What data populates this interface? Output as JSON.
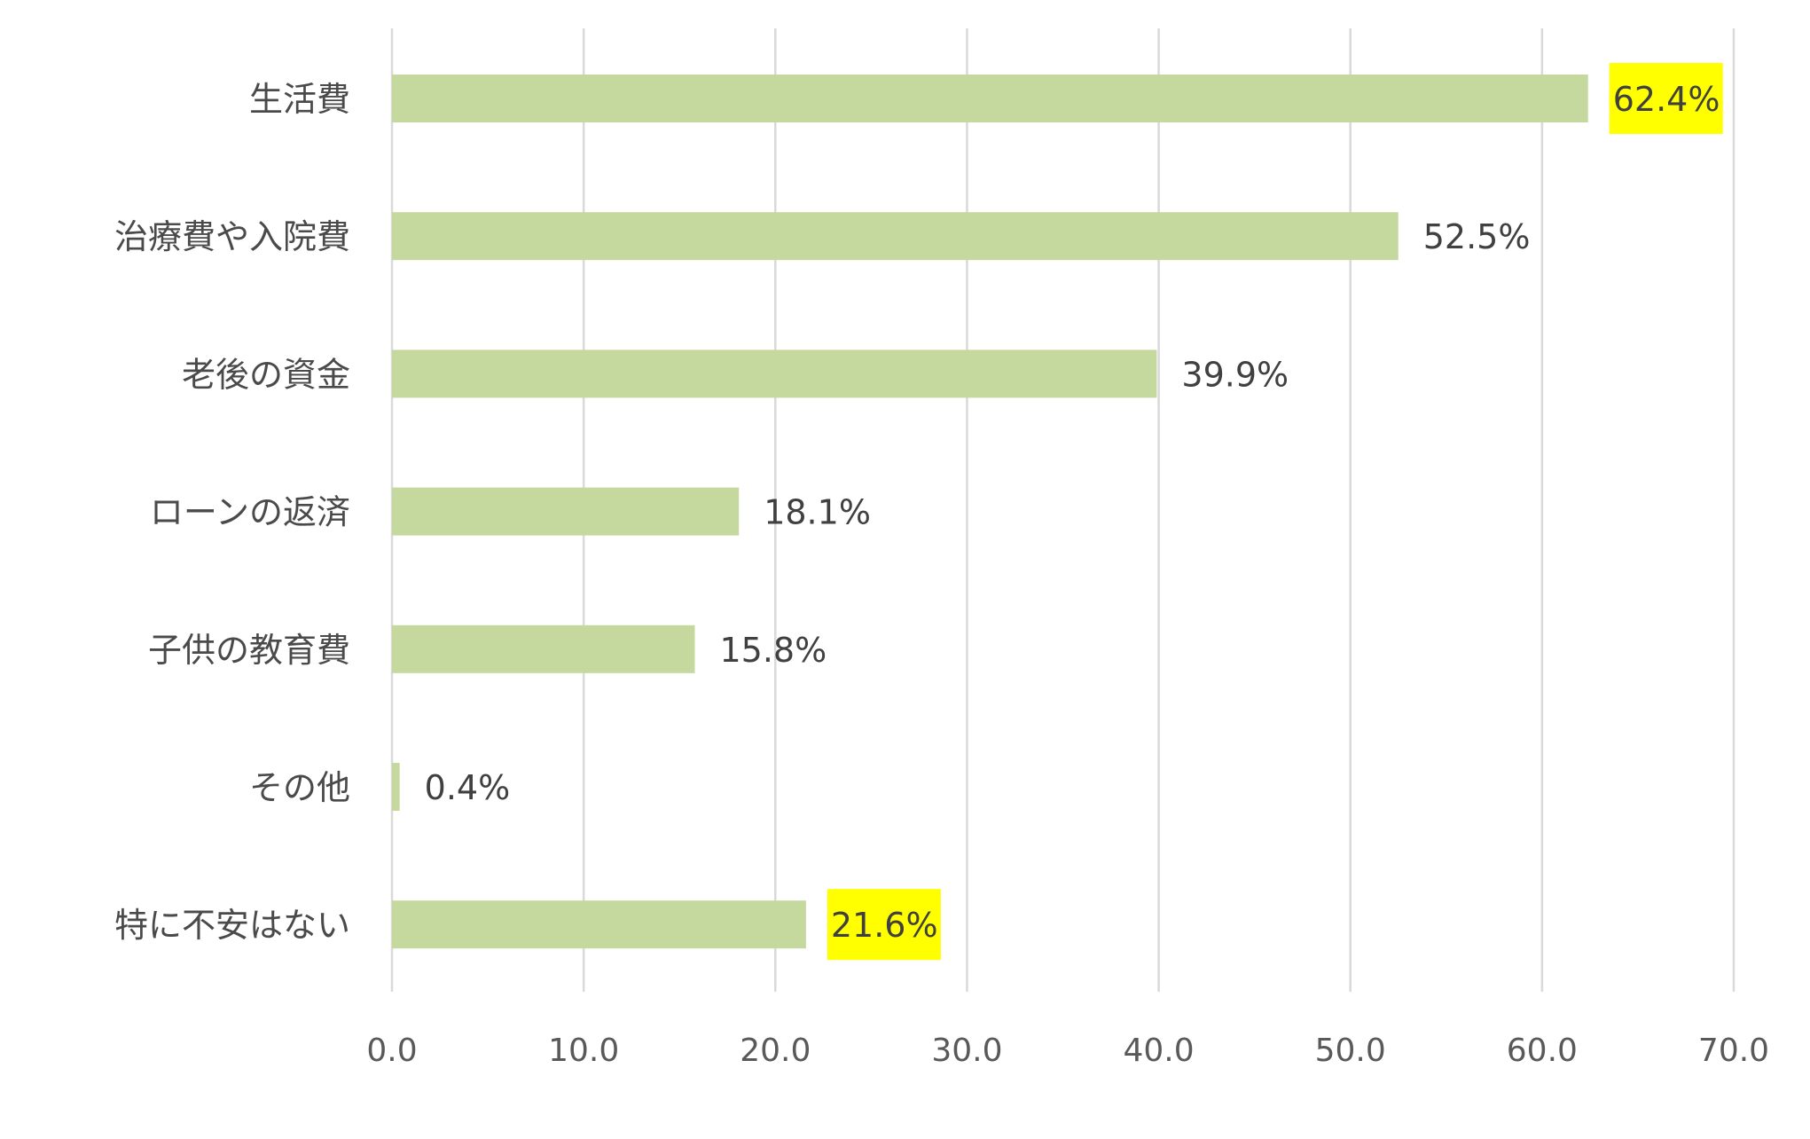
{
  "chart_data": {
    "type": "bar",
    "orientation": "horizontal",
    "categories": [
      "生活費",
      "治療費や入院費",
      "老後の資金",
      "ローンの返済",
      "子供の教育費",
      "その他",
      "特に不安はない"
    ],
    "values": [
      62.4,
      52.5,
      39.9,
      18.1,
      15.8,
      0.4,
      21.6
    ],
    "data_labels": [
      "62.4%",
      "52.5%",
      "39.9%",
      "18.1%",
      "15.8%",
      "0.4%",
      "21.6%"
    ],
    "highlighted": [
      true,
      false,
      false,
      false,
      false,
      false,
      true
    ],
    "xlim": [
      0,
      70
    ],
    "x_ticks": [
      "0.0",
      "10.0",
      "20.0",
      "30.0",
      "40.0",
      "50.0",
      "60.0",
      "70.0"
    ],
    "grid": true,
    "legend": "none",
    "title": "",
    "xlabel": "",
    "ylabel": "",
    "colors": {
      "bar": "#c5d89d",
      "highlight": "#ffff00",
      "grid": "#d9d9d9",
      "text": "#404040"
    }
  }
}
